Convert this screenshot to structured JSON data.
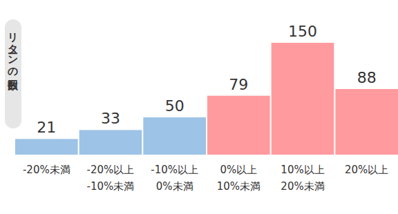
{
  "chart_data": {
    "type": "bar",
    "y_label": "リターンの回数",
    "categories": [
      "-20%未満",
      "-20%以上\n-10%未満",
      "-10%以上\n0%未満",
      "0%以上\n10%未満",
      "10%以上\n20%未満",
      "20%以上"
    ],
    "values": [
      21,
      33,
      50,
      79,
      150,
      88
    ],
    "colors": [
      "#9dc3e6",
      "#9dc3e6",
      "#9dc3e6",
      "#ff9a9e",
      "#ff9a9e",
      "#ff9a9e"
    ],
    "ylim": [
      0,
      150
    ],
    "data_labels": true,
    "tick_labels": "x"
  }
}
